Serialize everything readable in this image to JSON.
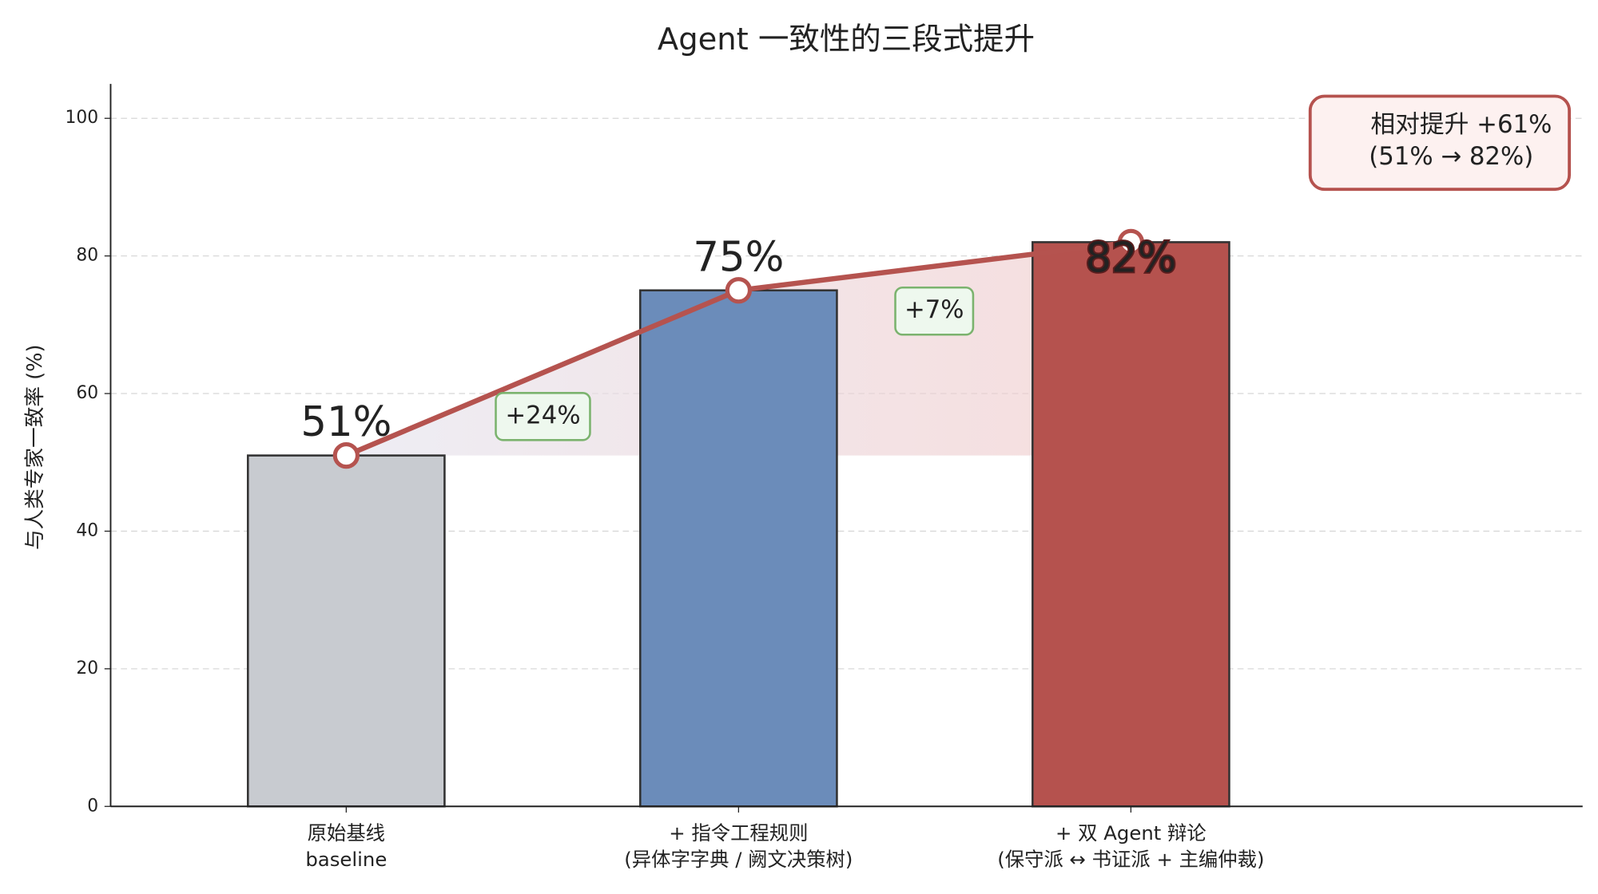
{
  "chart_data": {
    "type": "bar",
    "title": "Agent 一致性的三段式提升",
    "y_label": "与人类专家一致率 (%)",
    "categories": [
      [
        "原始基线",
        "baseline"
      ],
      [
        "+ 指令工程规则",
        "(异体字字典 / 阙文决策树)"
      ],
      [
        "+ 双 Agent 辩论",
        "(保守派 ↔ 书证派 + 主编仲裁)"
      ]
    ],
    "values": [
      51,
      75,
      82
    ],
    "value_labels": [
      "51%",
      "75%",
      "82%"
    ],
    "colors": [
      "#c8cbd0",
      "#6b8cba",
      "#b5524e"
    ],
    "line": {
      "color": "#b5534f",
      "values": [
        51,
        75,
        82
      ]
    },
    "deltas": [
      {
        "value": 24,
        "label": "+24%"
      },
      {
        "value": 7,
        "label": "+7%"
      }
    ],
    "summary": [
      "相对提升  +61%",
      "(51% → 82%)"
    ],
    "ylim": [
      0,
      105
    ],
    "yticks": [
      0,
      20,
      40,
      60,
      80,
      100
    ],
    "grid": true
  }
}
